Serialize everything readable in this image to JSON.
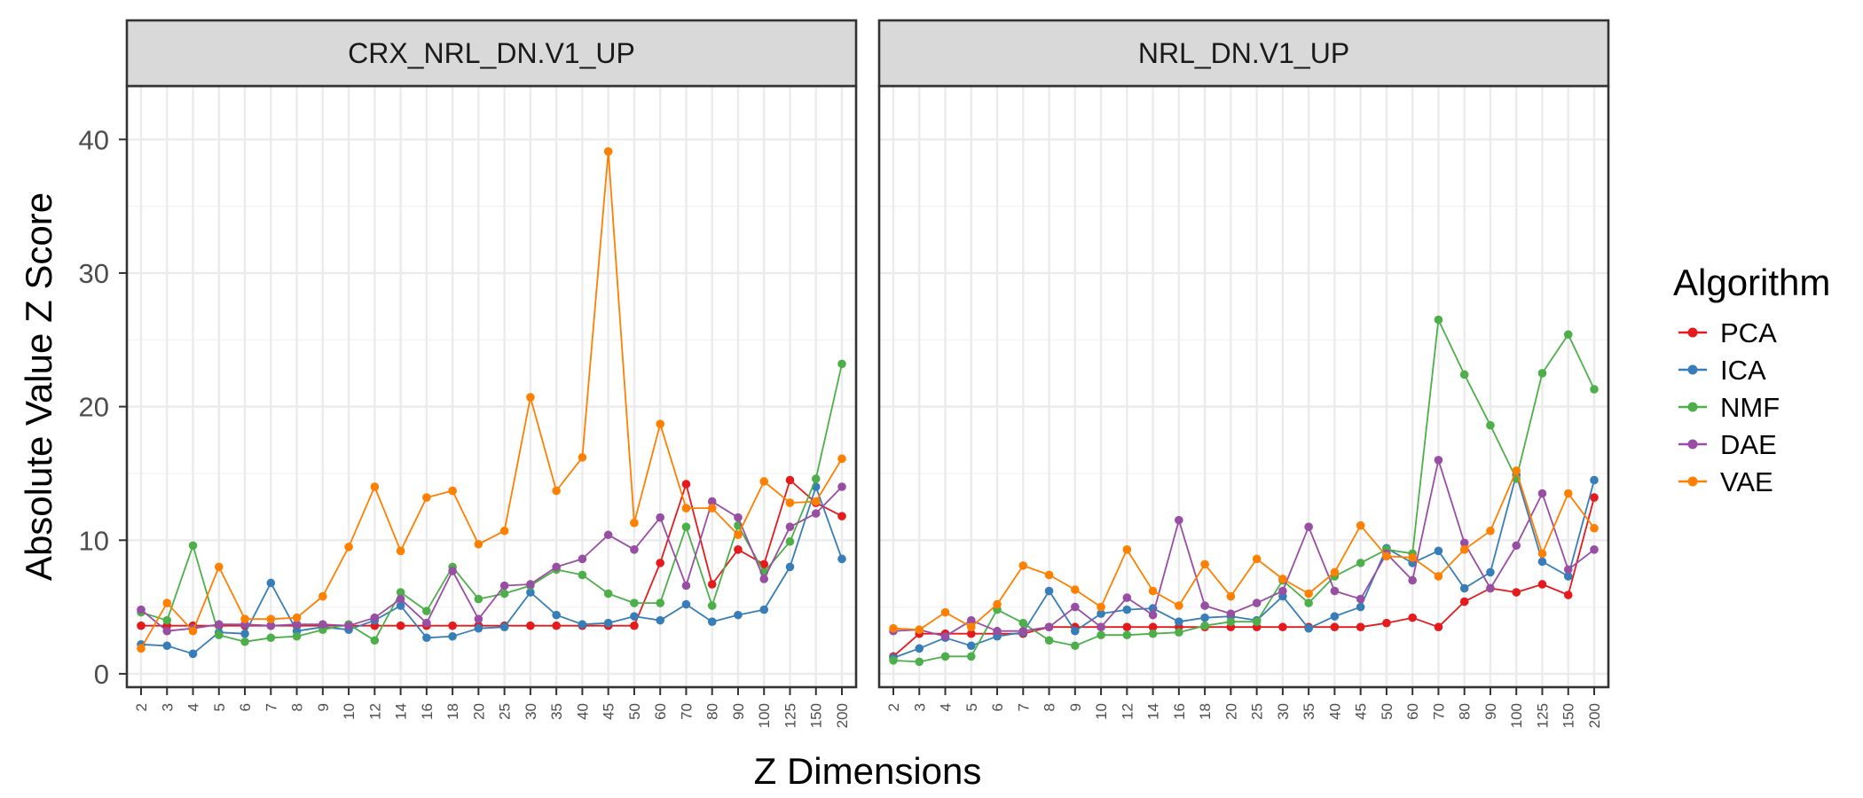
{
  "chart_data": {
    "type": "line",
    "ylabel": "Absolute Value Z Score",
    "xlabel": "Z Dimensions",
    "ylim": [
      -1,
      44
    ],
    "yticks": [
      0,
      10,
      20,
      30,
      40
    ],
    "grid": true,
    "legend_position": "right",
    "legend_title": "Algorithm",
    "categories": [
      "2",
      "3",
      "4",
      "5",
      "6",
      "7",
      "8",
      "9",
      "10",
      "12",
      "14",
      "16",
      "18",
      "20",
      "25",
      "30",
      "35",
      "40",
      "45",
      "50",
      "60",
      "70",
      "80",
      "90",
      "100",
      "125",
      "150",
      "200"
    ],
    "panels": [
      {
        "title": "CRX_NRL_DN.V1_UP",
        "series": [
          {
            "name": "PCA",
            "color": "#E41A1C",
            "values": [
              3.6,
              3.6,
              3.6,
              3.6,
              3.6,
              3.6,
              3.6,
              3.6,
              3.6,
              3.6,
              3.6,
              3.6,
              3.6,
              3.6,
              3.6,
              3.6,
              3.6,
              3.6,
              3.6,
              3.6,
              8.3,
              14.2,
              6.7,
              9.3,
              8.2,
              14.5,
              12.8,
              11.8
            ]
          },
          {
            "name": "ICA",
            "color": "#377EB8",
            "values": [
              2.2,
              2.1,
              1.5,
              3.1,
              3.0,
              6.8,
              3.2,
              3.5,
              3.3,
              4.0,
              5.1,
              2.7,
              2.8,
              3.4,
              3.5,
              6.1,
              4.4,
              3.7,
              3.8,
              4.3,
              4.0,
              5.2,
              3.9,
              4.4,
              4.8,
              8.0,
              14.0,
              8.6
            ]
          },
          {
            "name": "NMF",
            "color": "#4DAF4A",
            "values": [
              4.6,
              4.0,
              9.6,
              2.9,
              2.4,
              2.7,
              2.8,
              3.3,
              3.7,
              2.5,
              6.1,
              4.7,
              8.0,
              5.6,
              6.0,
              6.6,
              7.8,
              7.4,
              6.0,
              5.3,
              5.3,
              11.0,
              5.1,
              11.1,
              7.6,
              9.9,
              14.6,
              23.2
            ]
          },
          {
            "name": "DAE",
            "color": "#984EA3",
            "values": [
              4.8,
              3.2,
              3.4,
              3.7,
              3.7,
              3.6,
              3.7,
              3.7,
              3.6,
              4.2,
              5.6,
              3.8,
              7.7,
              4.1,
              6.6,
              6.7,
              8.0,
              8.6,
              10.4,
              9.3,
              11.7,
              6.6,
              12.9,
              11.7,
              7.1,
              11.0,
              12.0,
              14.0
            ]
          },
          {
            "name": "VAE",
            "color": "#FF7F00",
            "values": [
              1.9,
              5.3,
              3.2,
              8.0,
              4.1,
              4.1,
              4.2,
              5.8,
              9.5,
              14.0,
              9.2,
              13.2,
              13.7,
              9.7,
              10.7,
              20.7,
              13.7,
              16.2,
              39.1,
              11.3,
              18.7,
              12.4,
              12.4,
              10.4,
              14.4,
              12.8,
              12.9,
              16.1
            ]
          }
        ]
      },
      {
        "title": "NRL_DN.V1_UP",
        "series": [
          {
            "name": "PCA",
            "color": "#E41A1C",
            "values": [
              1.3,
              3.0,
              3.0,
              3.0,
              3.0,
              3.0,
              3.5,
              3.5,
              3.5,
              3.5,
              3.5,
              3.5,
              3.5,
              3.5,
              3.5,
              3.5,
              3.5,
              3.5,
              3.5,
              3.8,
              4.2,
              3.5,
              5.4,
              6.4,
              6.1,
              6.7,
              5.9,
              13.2
            ]
          },
          {
            "name": "ICA",
            "color": "#377EB8",
            "values": [
              1.2,
              1.9,
              2.7,
              2.1,
              2.8,
              3.1,
              6.2,
              3.2,
              4.5,
              4.8,
              4.9,
              3.9,
              4.2,
              4.3,
              4.0,
              5.8,
              3.4,
              4.3,
              5.0,
              9.4,
              8.3,
              9.2,
              6.4,
              7.6,
              14.9,
              8.4,
              7.3,
              14.5
            ]
          },
          {
            "name": "NMF",
            "color": "#4DAF4A",
            "values": [
              1.0,
              0.9,
              1.3,
              1.3,
              4.8,
              3.8,
              2.5,
              2.1,
              2.9,
              2.9,
              3.0,
              3.1,
              3.6,
              3.9,
              3.9,
              7.0,
              5.3,
              7.3,
              8.3,
              9.3,
              9.0,
              26.5,
              22.4,
              18.6,
              14.6,
              22.5,
              25.4,
              21.3
            ]
          },
          {
            "name": "DAE",
            "color": "#984EA3",
            "values": [
              3.2,
              3.3,
              2.8,
              4.0,
              3.2,
              3.2,
              3.5,
              5.0,
              3.5,
              5.7,
              4.4,
              11.5,
              5.1,
              4.5,
              5.3,
              6.2,
              11.0,
              6.2,
              5.6,
              9.0,
              7.0,
              16.0,
              9.8,
              6.4,
              9.6,
              13.5,
              7.8,
              9.3
            ]
          },
          {
            "name": "VAE",
            "color": "#FF7F00",
            "values": [
              3.4,
              3.3,
              4.6,
              3.5,
              5.2,
              8.1,
              7.4,
              6.3,
              5.0,
              9.3,
              6.2,
              5.1,
              8.2,
              5.8,
              8.6,
              7.1,
              6.0,
              7.6,
              11.1,
              8.8,
              8.7,
              7.3,
              9.3,
              10.7,
              15.2,
              9.0,
              13.5,
              10.9
            ]
          }
        ]
      }
    ]
  }
}
